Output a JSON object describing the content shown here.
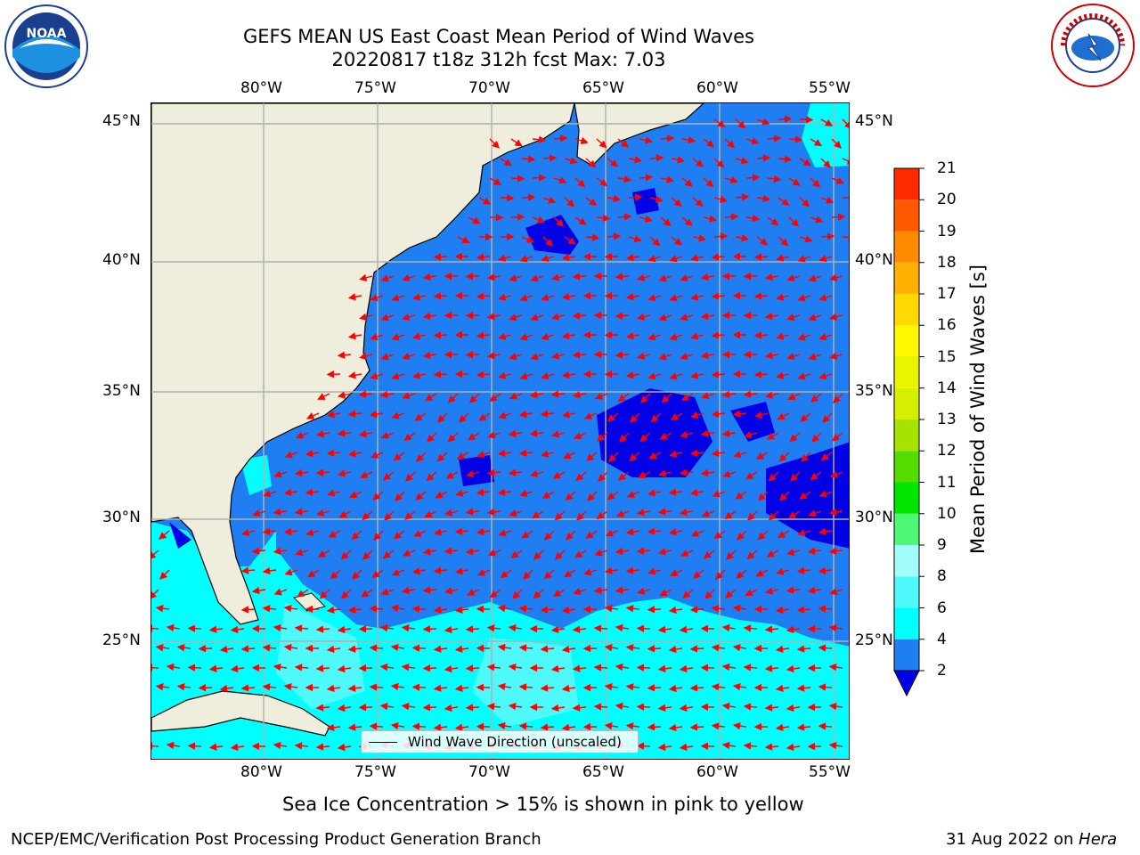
{
  "header": {
    "title_line1": "GEFS MEAN US East Coast Mean Period of Wind Waves",
    "title_line2": "20220817 t18z 312h fcst   Max: 7.03",
    "noaa_logo_text": "NOAA",
    "nws_logo_text": "NATIONAL WEATHER SERVICE"
  },
  "map": {
    "lon_labels": [
      "80°W",
      "75°W",
      "70°W",
      "65°W",
      "60°W",
      "55°W"
    ],
    "lat_labels": [
      "45°N",
      "40°N",
      "35°N",
      "30°N",
      "25°N"
    ],
    "legend_label": "Wind Wave Direction (unscaled)",
    "colors": {
      "land": "#efeedc",
      "ocean_2_4": "#1e7ef2",
      "ocean_lt2": "#0000e6",
      "ocean_4_6": "#00ffff",
      "ocean_6_8": "#4ef9fb",
      "arrow": "#ff0000",
      "grid": "#b0b0b0"
    }
  },
  "colorbar": {
    "title": "Mean Period of Wind Waves [s]",
    "ticks": [
      "2",
      "4",
      "6",
      "8",
      "9",
      "10",
      "11",
      "12",
      "13",
      "14",
      "15",
      "16",
      "17",
      "18",
      "19",
      "20",
      "21"
    ],
    "colors": [
      "#1e7ef2",
      "#00ffff",
      "#4ef9fb",
      "#a0fdfb",
      "#4ff777",
      "#00e600",
      "#55dd00",
      "#a6e400",
      "#d5ef00",
      "#e9f500",
      "#fff800",
      "#ffd900",
      "#ffb000",
      "#ff8a00",
      "#ff5a00",
      "#ff2a00"
    ],
    "under_color": "#0000e6"
  },
  "footer": {
    "sea_ice_note": "Sea Ice Concentration > 15% is shown in pink to yellow",
    "credit": "NCEP/EMC/Verification Post Processing Product Generation Branch",
    "date": "31 Aug 2022 on ",
    "machine": "Hera"
  }
}
